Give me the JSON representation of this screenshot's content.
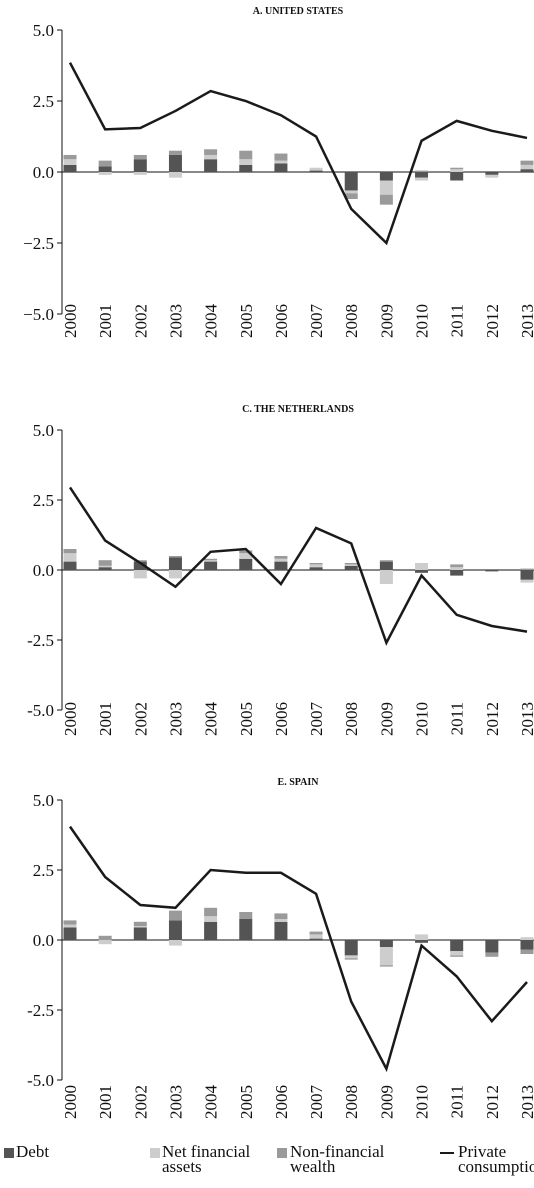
{
  "chart_data": [
    {
      "type": "combo",
      "title": "A. UNITED STATES",
      "categories": [
        "2000",
        "2001",
        "2002",
        "2003",
        "2004",
        "2005",
        "2006",
        "2007",
        "2008",
        "2009",
        "2010",
        "2011",
        "2012",
        "2013"
      ],
      "ylim": [
        -5,
        5
      ],
      "yticks": [
        {
          "value": 5,
          "label": "5.0"
        },
        2.5,
        {
          "value": 0,
          "label": "0.0"
        },
        {
          "value": -2.5,
          "label": "−2.5"
        },
        {
          "value": -5,
          "label": "−5.0"
        }
      ],
      "series": [
        {
          "name": "Debt",
          "type": "bar",
          "color": "#545454",
          "values": [
            0.25,
            0.2,
            0.45,
            0.6,
            0.45,
            0.25,
            0.3,
            0.05,
            -0.65,
            -0.3,
            -0.2,
            -0.3,
            -0.1,
            0.1
          ]
        },
        {
          "name": "Net financial assets",
          "type": "bar",
          "color": "#cdcdcd",
          "values": [
            0.2,
            -0.1,
            -0.1,
            -0.2,
            0.15,
            0.2,
            0.1,
            0.1,
            -0.1,
            -0.5,
            -0.1,
            0.1,
            -0.1,
            0.15
          ]
        },
        {
          "name": "Non-financial wealth",
          "type": "bar",
          "color": "#9a9a9a",
          "values": [
            0.15,
            0.2,
            0.15,
            0.15,
            0.2,
            0.3,
            0.25,
            0,
            -0.2,
            -0.35,
            0.05,
            0.05,
            0,
            0.15
          ]
        },
        {
          "name": "Private consumption",
          "type": "line",
          "color": "#1a1a1a",
          "values": [
            3.85,
            1.5,
            1.55,
            2.15,
            2.85,
            2.5,
            2.0,
            1.25,
            -1.3,
            -2.5,
            1.1,
            1.8,
            1.45,
            1.2
          ]
        }
      ]
    },
    {
      "type": "combo",
      "title": "C. THE NETHERLANDS",
      "categories": [
        "2000",
        "2001",
        "2002",
        "2003",
        "2004",
        "2005",
        "2006",
        "2007",
        "2008",
        "2009",
        "2010",
        "2011",
        "2012",
        "2013"
      ],
      "ylim": [
        -5,
        5
      ],
      "yticks": [
        {
          "value": 5,
          "label": "5.0"
        },
        2.5,
        {
          "value": 0,
          "label": "0.0"
        },
        -2.5,
        {
          "value": -5,
          "label": "-5.0"
        }
      ],
      "series": [
        {
          "name": "Debt",
          "type": "bar",
          "color": "#545454",
          "values": [
            0.3,
            0.1,
            0.3,
            0.45,
            0.3,
            0.4,
            0.3,
            0.1,
            0.15,
            0.3,
            -0.1,
            -0.2,
            -0.05,
            -0.35
          ]
        },
        {
          "name": "Net financial assets",
          "type": "bar",
          "color": "#cdcdcd",
          "values": [
            0.3,
            0.05,
            -0.3,
            -0.3,
            0.05,
            0.2,
            0.1,
            0.1,
            0.05,
            -0.5,
            0.25,
            0.1,
            0,
            -0.1
          ]
        },
        {
          "name": "Non-financial wealth",
          "type": "bar",
          "color": "#9a9a9a",
          "values": [
            0.15,
            0.2,
            0.05,
            0.05,
            0.05,
            0.1,
            0.1,
            0.05,
            0.05,
            0.05,
            0,
            0.1,
            0,
            0.05
          ]
        },
        {
          "name": "Private consumption",
          "type": "line",
          "color": "#1a1a1a",
          "values": [
            2.95,
            1.05,
            0.25,
            -0.6,
            0.65,
            0.75,
            -0.5,
            1.5,
            0.95,
            -2.6,
            -0.2,
            -1.6,
            -2.0,
            -2.2
          ]
        }
      ]
    },
    {
      "type": "combo",
      "title": "E. SPAIN",
      "categories": [
        "2000",
        "2001",
        "2002",
        "2003",
        "2004",
        "2005",
        "2006",
        "2007",
        "2008",
        "2009",
        "2010",
        "2011",
        "2012",
        "2013"
      ],
      "ylim": [
        -5,
        5
      ],
      "yticks": [
        {
          "value": 5,
          "label": "5.0"
        },
        2.5,
        {
          "value": 0,
          "label": "0.0"
        },
        -2.5,
        {
          "value": -5,
          "label": "-5.0"
        }
      ],
      "series": [
        {
          "name": "Debt",
          "type": "bar",
          "color": "#545454",
          "values": [
            0.45,
            0,
            0.45,
            0.7,
            0.65,
            0.75,
            0.65,
            0.05,
            -0.55,
            -0.25,
            -0.1,
            -0.4,
            -0.45,
            -0.35
          ]
        },
        {
          "name": "Net financial assets",
          "type": "bar",
          "color": "#cdcdcd",
          "values": [
            0.1,
            -0.15,
            0.05,
            -0.2,
            0.2,
            0,
            0.1,
            0.15,
            -0.1,
            -0.65,
            0.2,
            -0.15,
            0,
            0.1
          ]
        },
        {
          "name": "Non-financial wealth",
          "type": "bar",
          "color": "#9a9a9a",
          "values": [
            0.15,
            0.15,
            0.15,
            0.35,
            0.3,
            0.25,
            0.2,
            0.1,
            -0.05,
            -0.05,
            0,
            -0.05,
            -0.15,
            -0.15
          ]
        },
        {
          "name": "Private consumption",
          "type": "line",
          "color": "#1a1a1a",
          "values": [
            4.05,
            2.25,
            1.25,
            1.15,
            2.5,
            2.4,
            2.4,
            1.65,
            -2.2,
            -4.6,
            -0.2,
            -1.3,
            -2.9,
            -1.5
          ]
        }
      ]
    }
  ]
}
